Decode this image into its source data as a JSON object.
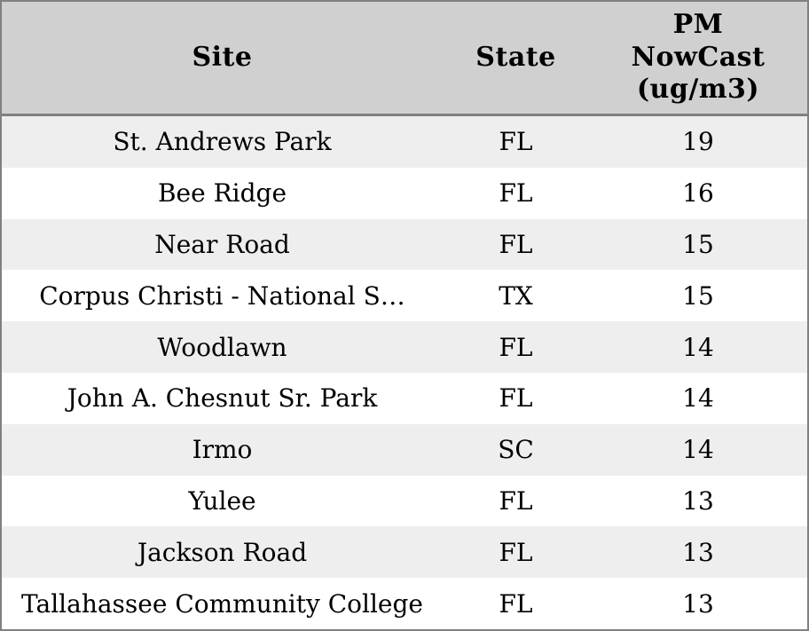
{
  "chart_data": {
    "type": "table",
    "columns": [
      {
        "key": "site",
        "label": "Site"
      },
      {
        "key": "state",
        "label": "State"
      },
      {
        "key": "pm",
        "label": "PM\nNowCast\n(ug/m3)"
      }
    ],
    "rows": [
      {
        "site": "St. Andrews Park",
        "state": "FL",
        "pm": 19
      },
      {
        "site": "Bee Ridge",
        "state": "FL",
        "pm": 16
      },
      {
        "site": "Near Road",
        "state": "FL",
        "pm": 15
      },
      {
        "site": "Corpus Christi - National S…",
        "state": "TX",
        "pm": 15
      },
      {
        "site": "Woodlawn",
        "state": "FL",
        "pm": 14
      },
      {
        "site": "John A. Chesnut Sr. Park",
        "state": "FL",
        "pm": 14
      },
      {
        "site": "Irmo",
        "state": "SC",
        "pm": 14
      },
      {
        "site": "Yulee",
        "state": "FL",
        "pm": 13
      },
      {
        "site": "Jackson Road",
        "state": "FL",
        "pm": 13
      },
      {
        "site": "Tallahassee Community College",
        "state": "FL",
        "pm": 13
      }
    ]
  },
  "colors": {
    "header_bg": "#d0d0d0",
    "row_stripe_bg": "#eeeeee",
    "row_bg": "#ffffff",
    "border": "#808080",
    "text": "#000000"
  }
}
